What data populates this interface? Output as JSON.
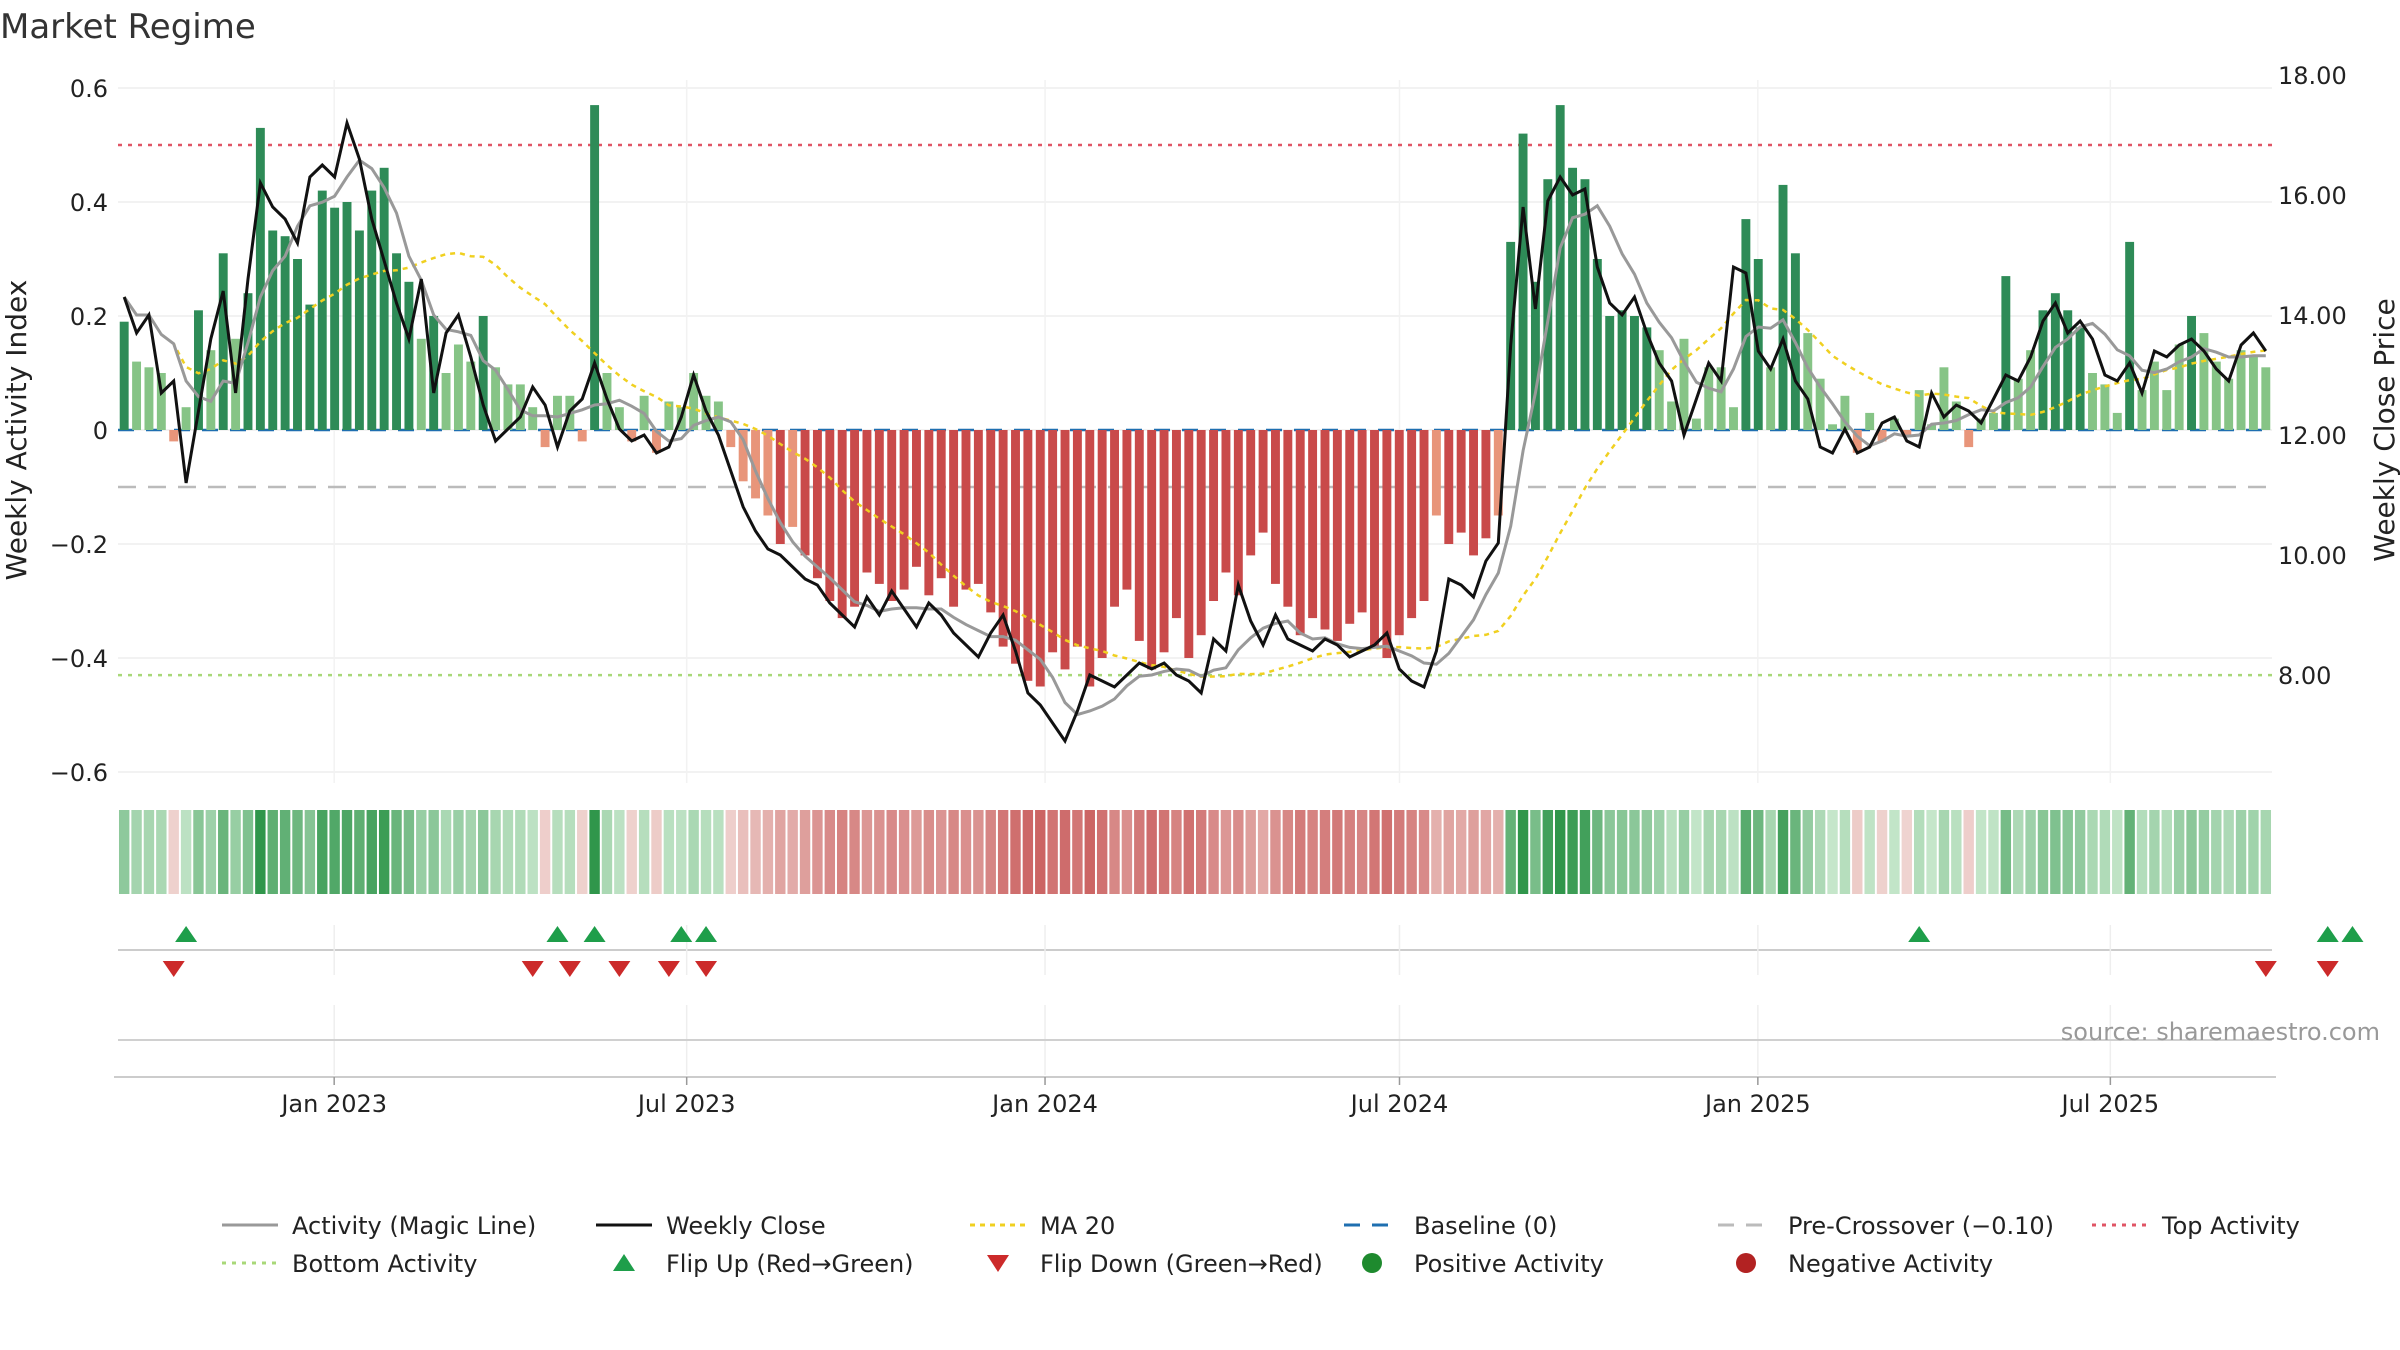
{
  "title": "Market Regime",
  "source_note": "source: sharemaestro.com",
  "chart_data": {
    "type": "bar",
    "title": "Market Regime",
    "ylabel_left": "Weekly Activity Index",
    "ylabel_right": "Weekly Close Price",
    "ylim_left": [
      -0.62,
      0.62
    ],
    "ylim_right": [
      6.2,
      18.4
    ],
    "yticks_left": [
      {
        "v": 0.6,
        "label": "0.6"
      },
      {
        "v": 0.4,
        "label": "0.4"
      },
      {
        "v": 0.2,
        "label": "0.2"
      },
      {
        "v": 0,
        "label": "0"
      },
      {
        "v": -0.2,
        "label": "−0.2"
      },
      {
        "v": -0.4,
        "label": "−0.4"
      },
      {
        "v": -0.6,
        "label": "−0.6"
      }
    ],
    "yticks_right": [
      {
        "v": 18,
        "label": "18.00"
      },
      {
        "v": 16,
        "label": "16.00"
      },
      {
        "v": 14,
        "label": "14.00"
      },
      {
        "v": 12,
        "label": "12.00"
      },
      {
        "v": 10,
        "label": "10.00"
      },
      {
        "v": 8,
        "label": "8.00"
      }
    ],
    "xlim": [
      "2022-09-12",
      "2025-09-22"
    ],
    "xticks": [
      {
        "date": "2023-01-01",
        "label": "Jan 2023"
      },
      {
        "date": "2023-07-01",
        "label": "Jul 2023"
      },
      {
        "date": "2024-01-01",
        "label": "Jan 2024"
      },
      {
        "date": "2024-07-01",
        "label": "Jul 2024"
      },
      {
        "date": "2025-01-01",
        "label": "Jan 2025"
      },
      {
        "date": "2025-07-01",
        "label": "Jul 2025"
      }
    ],
    "reference_lines": {
      "top_activity": 0.5,
      "bottom_activity": -0.43,
      "baseline": 0,
      "pre_crossover": -0.1
    },
    "series": [
      {
        "name": "Activity (Magic Line)"
      },
      {
        "name": "Weekly Close"
      },
      {
        "name": "MA 20"
      }
    ],
    "segments": [
      {
        "weeks": 18,
        "activity": [
          0.19,
          0.12,
          0.11,
          0.1,
          -0.02,
          0.04,
          0.21,
          0.14,
          0.31,
          0.16,
          0.24,
          0.53,
          0.35,
          0.34,
          0.3,
          0.22,
          0.42,
          0.39
        ],
        "close": [
          14.3,
          13.7,
          14.0,
          12.7,
          12.9,
          11.2,
          12.4,
          13.6,
          14.4,
          12.7,
          14.6,
          16.2,
          15.8,
          15.6,
          15.2,
          16.3,
          16.5,
          16.3
        ]
      },
      {
        "weeks": 16,
        "activity": [
          0.4,
          0.35,
          0.42,
          0.46,
          0.31,
          0.26,
          0.16,
          0.2,
          0.1,
          0.15,
          0.12,
          0.2,
          0.11,
          0.08,
          0.08,
          0.04
        ],
        "close": [
          17.2,
          16.6,
          15.6,
          14.9,
          14.2,
          13.6,
          14.6,
          12.7,
          13.7,
          14.0,
          13.3,
          12.5,
          11.9,
          12.1,
          12.3,
          12.8
        ]
      },
      {
        "weeks": 6,
        "activity": [
          -0.03,
          0.06,
          0.06,
          -0.02,
          0.57,
          0.1
        ],
        "close": [
          12.5,
          11.8,
          12.4,
          12.6,
          13.2,
          12.6
        ]
      },
      {
        "weeks": 6,
        "activity": [
          0.04,
          -0.02,
          0.06,
          -0.04,
          0.05,
          0.04
        ],
        "close": [
          12.1,
          11.9,
          12.0,
          11.7,
          11.8,
          12.3
        ]
      },
      {
        "weeks": 30,
        "activity": [
          0.1,
          0.06,
          0.05,
          -0.03,
          -0.09,
          -0.12,
          -0.15,
          -0.2,
          -0.17,
          -0.22,
          -0.26,
          -0.3,
          -0.33,
          -0.31,
          -0.25,
          -0.27,
          -0.3,
          -0.28,
          -0.24,
          -0.29,
          -0.26,
          -0.31,
          -0.28,
          -0.27,
          -0.32,
          -0.38,
          -0.41,
          -0.44,
          -0.45,
          -0.39
        ],
        "close": [
          13.0,
          12.4,
          12.0,
          11.4,
          10.8,
          10.4,
          10.1,
          10.0,
          9.8,
          9.6,
          9.5,
          9.2,
          9.0,
          8.8,
          9.3,
          9.0,
          9.4,
          9.1,
          8.8,
          9.2,
          9.0,
          8.7,
          8.5,
          8.3,
          8.7,
          9.0,
          8.4,
          7.7,
          7.5,
          7.2
        ]
      },
      {
        "weeks": 36,
        "activity": [
          -0.42,
          -0.38,
          -0.45,
          -0.4,
          -0.31,
          -0.28,
          -0.37,
          -0.42,
          -0.39,
          -0.33,
          -0.4,
          -0.36,
          -0.3,
          -0.25,
          -0.29,
          -0.22,
          -0.18,
          -0.27,
          -0.31,
          -0.36,
          -0.33,
          -0.35,
          -0.37,
          -0.34,
          -0.32,
          -0.38,
          -0.4,
          -0.36,
          -0.33,
          -0.3,
          -0.15,
          -0.2,
          -0.18,
          -0.22,
          -0.19,
          -0.15
        ],
        "close": [
          6.9,
          7.4,
          8.0,
          7.9,
          7.8,
          8.0,
          8.2,
          8.1,
          8.2,
          8.0,
          7.9,
          7.7,
          8.6,
          8.4,
          9.5,
          8.9,
          8.5,
          9.0,
          8.6,
          8.5,
          8.4,
          8.6,
          8.5,
          8.3,
          8.4,
          8.5,
          8.7,
          8.1,
          7.9,
          7.8,
          8.4,
          9.6,
          9.5,
          9.3,
          9.9,
          10.2
        ]
      },
      {
        "weeks": 27,
        "activity": [
          0.33,
          0.52,
          0.26,
          0.44,
          0.57,
          0.46,
          0.44,
          0.3,
          0.2,
          0.21,
          0.2,
          0.18,
          0.14,
          0.05,
          0.16,
          0.02,
          0.11,
          0.11,
          0.04,
          0.37,
          0.3,
          0.11,
          0.43,
          0.31,
          0.17,
          0.09,
          0.01
        ],
        "close": [
          13.5,
          15.8,
          14.1,
          15.9,
          16.3,
          16.0,
          16.1,
          14.8,
          14.2,
          14.0,
          14.3,
          13.7,
          13.2,
          12.9,
          12.0,
          12.6,
          13.2,
          12.9,
          14.8,
          14.7,
          13.4,
          13.1,
          13.6,
          12.9,
          12.6,
          11.8,
          11.7
        ]
      },
      {
        "weeks": 11,
        "activity": [
          0.06,
          -0.04,
          0.03,
          -0.02,
          0.02,
          -0.01,
          0.07,
          0.01,
          0.11,
          0.05,
          -0.03
        ],
        "close": [
          12.1,
          11.7,
          11.8,
          12.2,
          12.3,
          11.9,
          11.8,
          12.7,
          12.3,
          12.5,
          12.4
        ]
      },
      {
        "weeks": 24,
        "activity": [
          0.02,
          0.03,
          0.27,
          0.09,
          0.14,
          0.21,
          0.24,
          0.21,
          0.18,
          0.1,
          0.08,
          0.03,
          0.33,
          0.07,
          0.12,
          0.07,
          0.15,
          0.2,
          0.17,
          0.12,
          0.09,
          0.14,
          0.13,
          0.11
        ],
        "close": [
          12.2,
          12.6,
          13.0,
          12.9,
          13.3,
          13.9,
          14.2,
          13.7,
          13.9,
          13.6,
          13.0,
          12.9,
          13.2,
          12.7,
          13.4,
          13.3,
          13.5,
          13.6,
          13.4,
          13.1,
          12.9,
          13.5,
          13.7,
          13.4
        ]
      }
    ],
    "flip_up_weeks": [
      5,
      35,
      38,
      45,
      47,
      145,
      178,
      180
    ],
    "flip_down_weeks": [
      4,
      33,
      36,
      40,
      44,
      47,
      173,
      178
    ],
    "colors": {
      "pos_strong": "#2e8b57",
      "pos_light": "#86c486",
      "neg_strong": "#c94a4a",
      "neg_light": "#e8957a",
      "activity_line": "#999999",
      "close_line": "#111111",
      "ma_line": "#f0d020",
      "baseline": "#1f6fb0",
      "pre_crossover": "#bbbbbb",
      "top": "#e05565",
      "bottom": "#a8d878",
      "flip_up": "#1e9e4a",
      "flip_down": "#cc2a2a"
    }
  },
  "legend": {
    "items": [
      {
        "label": "Activity (Magic Line)",
        "icon": "activity-line-icon"
      },
      {
        "label": "Weekly Close",
        "icon": "close-line-icon"
      },
      {
        "label": "MA 20",
        "icon": "ma20-line-icon"
      },
      {
        "label": "Baseline (0)",
        "icon": "baseline-line-icon"
      },
      {
        "label": "Pre-Crossover (−0.10)",
        "icon": "precrossover-line-icon"
      },
      {
        "label": "Top Activity",
        "icon": "top-activity-line-icon"
      },
      {
        "label": "Bottom Activity",
        "icon": "bottom-activity-line-icon"
      },
      {
        "label": "Flip Up (Red→Green)",
        "icon": "triangle-up-icon"
      },
      {
        "label": "Flip Down (Green→Red)",
        "icon": "triangle-down-icon"
      },
      {
        "label": "Positive Activity",
        "icon": "green-dot-icon"
      },
      {
        "label": "Negative Activity",
        "icon": "red-dot-icon"
      }
    ]
  }
}
